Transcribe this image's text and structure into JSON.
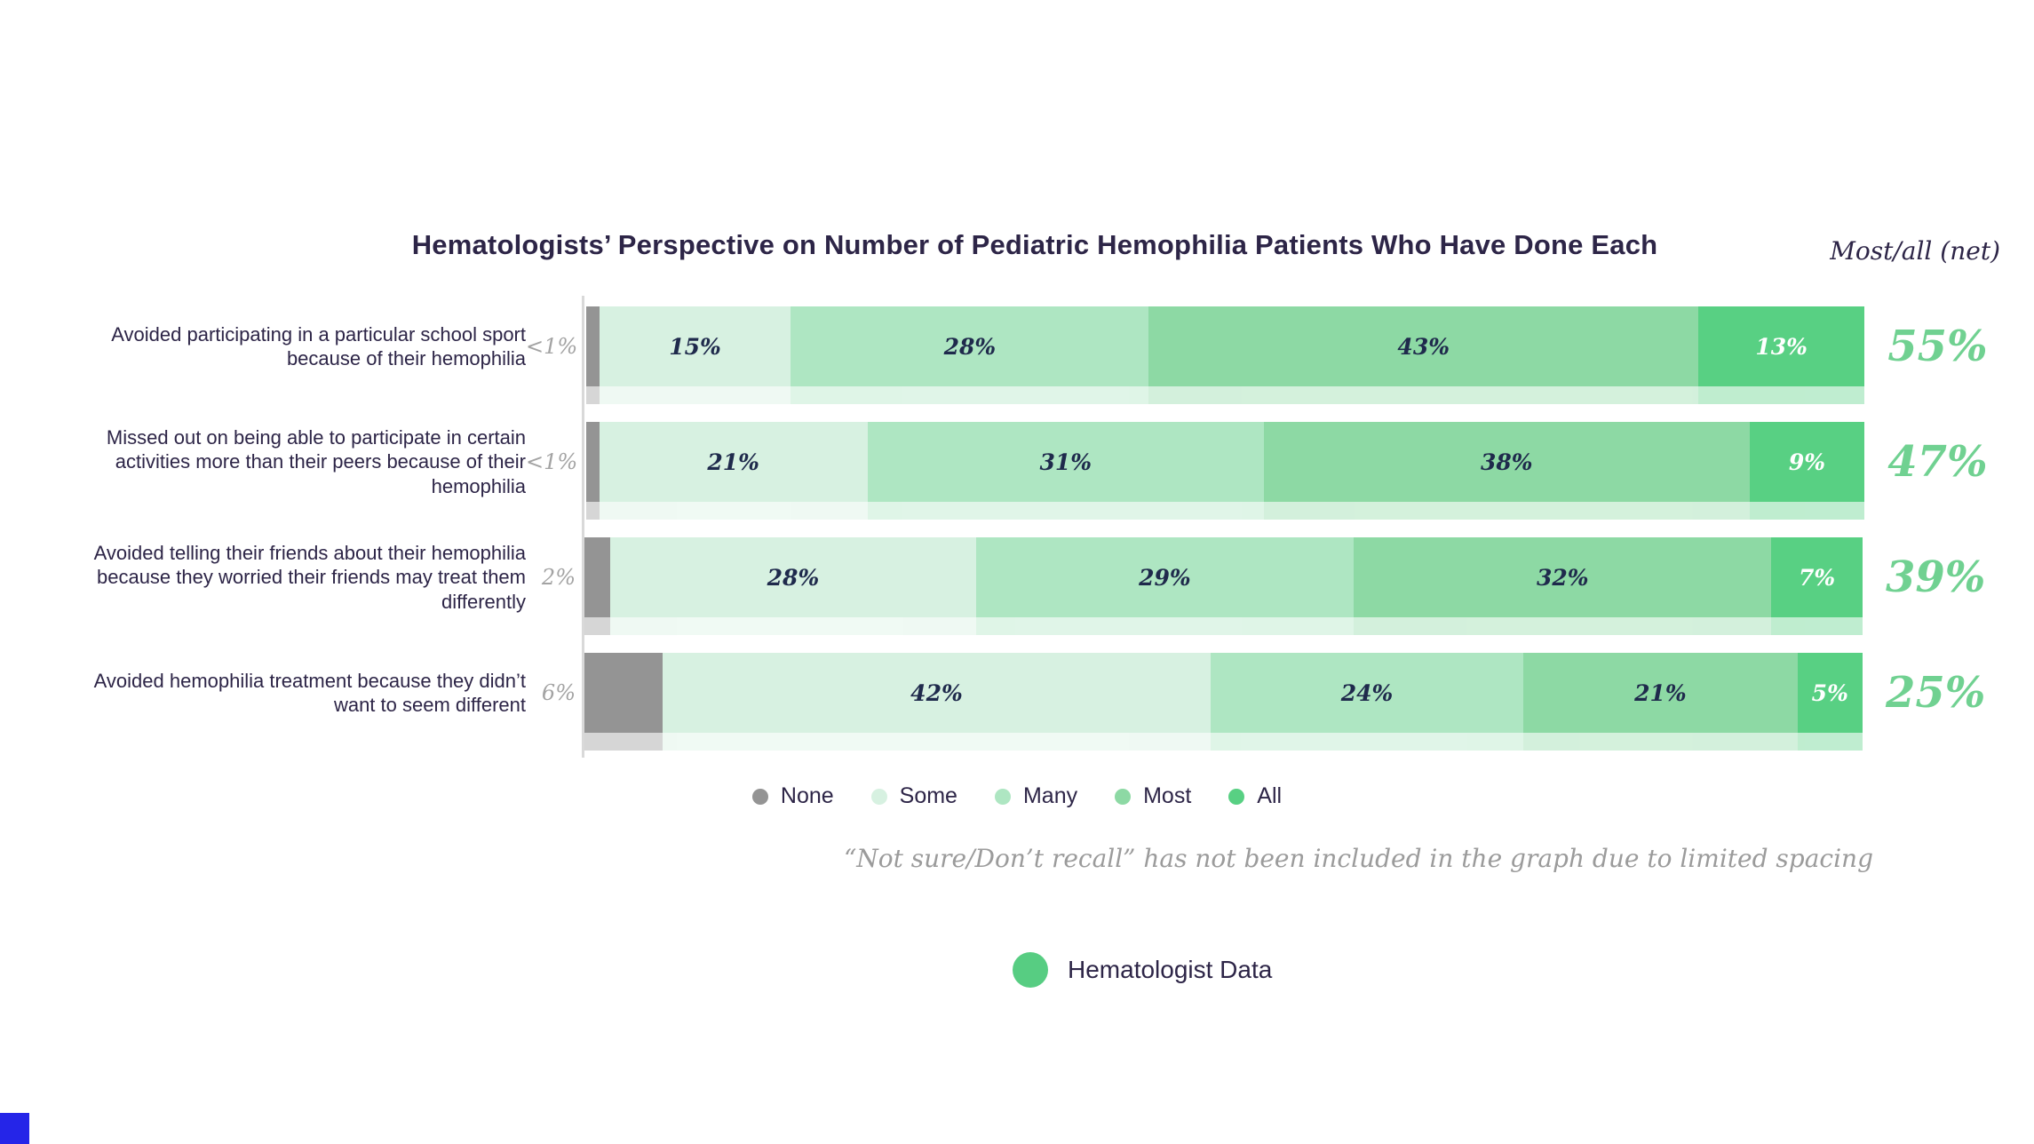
{
  "page": {
    "title": "Hematologists’ Perspective on Number of Pediatric Hemophilia Patients Who Have Done Each",
    "net_header": "Most/all (net)",
    "footnote": "“Not sure/Don’t recall” has not been included in the graph due to limited spacing",
    "bottom_legend_label": "Hematologist Data"
  },
  "colors": {
    "none": "#949494",
    "some": "#d7f1e1",
    "many": "#aee6c2",
    "most": "#8dd9a4",
    "all": "#58d083",
    "net_text": "#70d191",
    "title_text": "#2d2547",
    "bar_label_text": "#1f2a4c",
    "muted_text": "#a3a3a3",
    "footnote_text": "#9b9b9b",
    "axis_line": "#d9d9d9",
    "source_dot": "#57cd82",
    "corner_accent": "#2525e8"
  },
  "legend": [
    {
      "key": "none",
      "label": "None"
    },
    {
      "key": "some",
      "label": "Some"
    },
    {
      "key": "many",
      "label": "Many"
    },
    {
      "key": "most",
      "label": "Most"
    },
    {
      "key": "all",
      "label": "All"
    }
  ],
  "chart_data": {
    "type": "bar",
    "orientation": "horizontal",
    "stacked": true,
    "normalized_to_full_width": true,
    "series": [
      "None",
      "Some",
      "Many",
      "Most",
      "All"
    ],
    "title": "Hematologists’ Perspective on Number of Pediatric Hemophilia Patients Who Have Done Each",
    "net_column_header": "Most/all (net)",
    "rows": [
      {
        "label": "Avoided participating in a particular school sport because of their hemophilia",
        "values": [
          1,
          15,
          28,
          43,
          13
        ],
        "value_labels": [
          "<1%",
          "15%",
          "28%",
          "43%",
          "13%"
        ],
        "net": "55%"
      },
      {
        "label": "Missed out on being able to participate in certain activities more than their peers because of their hemophilia",
        "values": [
          1,
          21,
          31,
          38,
          9
        ],
        "value_labels": [
          "<1%",
          "21%",
          "31%",
          "38%",
          "9%"
        ],
        "net": "47%"
      },
      {
        "label": "Avoided telling their friends about their hemophilia because they worried their friends may treat them differently",
        "values": [
          2,
          28,
          29,
          32,
          7
        ],
        "value_labels": [
          "2%",
          "28%",
          "29%",
          "32%",
          "7%"
        ],
        "net": "39%"
      },
      {
        "label": "Avoided hemophilia treatment because they didn’t want to seem different",
        "values": [
          6,
          42,
          24,
          21,
          5
        ],
        "value_labels": [
          "6%",
          "42%",
          "24%",
          "21%",
          "5%"
        ],
        "net": "25%"
      }
    ]
  }
}
